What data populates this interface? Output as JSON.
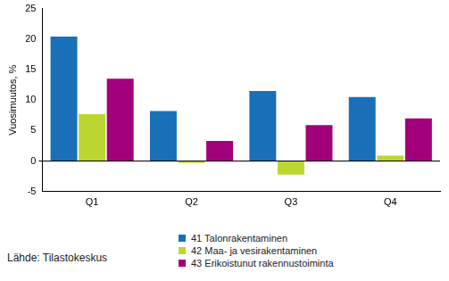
{
  "chart_data": {
    "type": "bar",
    "y_label": "Vuosimuutos, %",
    "categories": [
      "Q1",
      "Q2",
      "Q3",
      "Q4"
    ],
    "series": [
      {
        "name": "41 Talonrakentaminen",
        "color": "#1a70b8",
        "values": [
          20.4,
          8.2,
          11.5,
          10.5
        ]
      },
      {
        "name": "42 Maa- ja vesirakentaminen",
        "color": "#bcd631",
        "values": [
          7.7,
          -0.3,
          -2.2,
          0.9
        ]
      },
      {
        "name": "43 Erikoistunut rakennustoiminta",
        "color": "#a2007a",
        "values": [
          13.5,
          3.3,
          5.9,
          7.0
        ]
      }
    ],
    "ylim": [
      -5,
      25
    ],
    "yticks": [
      -5,
      0,
      5,
      10,
      15,
      20,
      25
    ],
    "grid": false,
    "legend": "bottom",
    "annotations": [
      "Lähde: Tilastokeskus"
    ]
  }
}
